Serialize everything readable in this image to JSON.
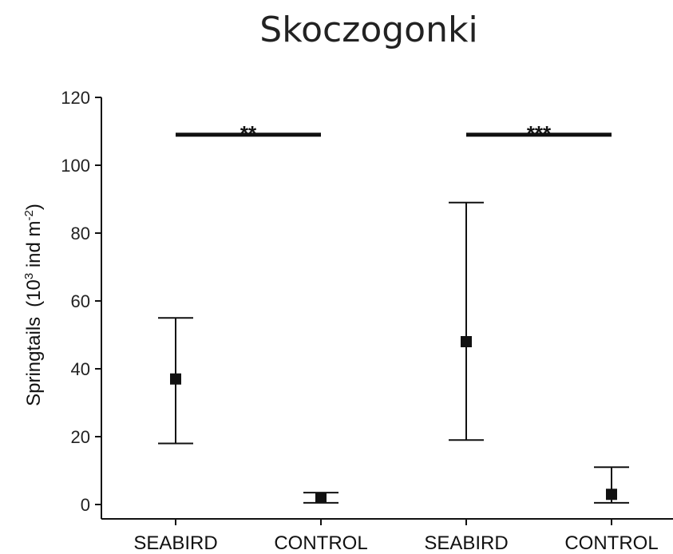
{
  "chart_data": {
    "type": "scatter",
    "title": "Skoczogonki",
    "ylabel_main": "Springtails",
    "ylabel_unit": "(10",
    "ylabel_unit_exp": "3",
    "ylabel_unit_mid": " ind m",
    "ylabel_unit_exp2": "-2",
    "ylabel_unit_end": ")",
    "ylim": [
      0,
      120
    ],
    "yticks": [
      0,
      20,
      40,
      60,
      80,
      100,
      120
    ],
    "categories": [
      "SEABIRD",
      "CONTROL",
      "SEABIRD",
      "CONTROL"
    ],
    "points": [
      {
        "category": "SEABIRD",
        "mean": 37,
        "low": 18,
        "high": 55
      },
      {
        "category": "CONTROL",
        "mean": 2,
        "low": 0.5,
        "high": 3.5
      },
      {
        "category": "SEABIRD",
        "mean": 48,
        "low": 19,
        "high": 89
      },
      {
        "category": "CONTROL",
        "mean": 3,
        "low": 0.5,
        "high": 11
      }
    ],
    "significance": [
      {
        "from": 0,
        "to": 1,
        "label": "**",
        "y": 109
      },
      {
        "from": 2,
        "to": 3,
        "label": "***",
        "y": 109
      }
    ]
  }
}
